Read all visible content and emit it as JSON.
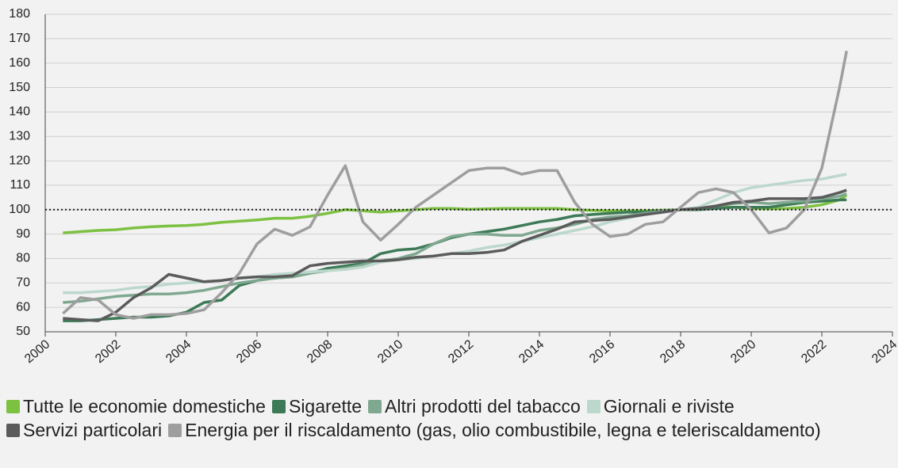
{
  "chart_data": {
    "type": "line",
    "x": [
      2000.5,
      2001,
      2001.5,
      2002,
      2002.5,
      2003,
      2003.5,
      2004,
      2004.5,
      2005,
      2005.5,
      2006,
      2006.5,
      2007,
      2007.5,
      2008,
      2008.5,
      2009,
      2009.5,
      2010,
      2010.5,
      2011,
      2011.5,
      2012,
      2012.5,
      2013,
      2013.5,
      2014,
      2014.5,
      2015,
      2015.5,
      2016,
      2016.5,
      2017,
      2017.5,
      2018,
      2018.5,
      2019,
      2019.5,
      2020,
      2020.5,
      2021,
      2021.5,
      2022,
      2022.5,
      2022.7
    ],
    "series": [
      {
        "name": "Tutte le economie domestiche",
        "color": "#7dc142",
        "values": [
          90.5,
          91,
          91.5,
          91.8,
          92.5,
          93,
          93.3,
          93.5,
          94,
          94.8,
          95.3,
          95.8,
          96.5,
          96.5,
          97.3,
          98.5,
          100,
          99.5,
          99,
          99.5,
          100,
          100.5,
          100.5,
          100.2,
          100.3,
          100.5,
          100.5,
          100.5,
          100.5,
          100,
          99.7,
          99.5,
          99.5,
          99.6,
          99.8,
          100,
          100.5,
          101,
          101,
          100.5,
          100.3,
          100.5,
          101,
          102,
          104,
          106
        ]
      },
      {
        "name": "Sigarette",
        "color": "#3d7a57",
        "values": [
          54.5,
          54.5,
          55,
          55.5,
          56,
          56,
          56.5,
          58,
          62,
          63,
          69,
          71,
          72,
          72.5,
          74,
          76,
          77,
          78,
          82,
          83.5,
          84,
          86,
          88.5,
          90,
          91,
          92,
          93.5,
          95,
          96,
          97.5,
          98,
          98.5,
          99,
          99,
          99.5,
          100,
          100,
          100.5,
          101,
          101,
          101,
          102,
          103,
          103.5,
          104,
          104
        ]
      },
      {
        "name": "Altri prodotti del tabacco",
        "color": "#7fa890",
        "values": [
          62,
          62.5,
          63.5,
          64.5,
          65,
          65.5,
          65.5,
          66,
          67,
          68.5,
          70,
          71,
          72,
          72.5,
          74,
          75,
          76,
          77.5,
          79,
          80,
          82,
          86,
          89,
          90,
          90,
          89.5,
          89.5,
          91.5,
          92.5,
          94,
          96,
          97,
          97.5,
          98.5,
          99.5,
          100,
          100.5,
          101.5,
          102.5,
          103,
          102.5,
          103,
          103.5,
          104.5,
          105.5,
          106.5
        ]
      },
      {
        "name": "Giornali e riviste",
        "color": "#bcd8cc",
        "values": [
          66,
          66,
          66.5,
          67,
          68,
          68.5,
          69.5,
          70,
          70.5,
          71,
          72,
          72.5,
          73.5,
          74,
          74.5,
          75,
          75.5,
          76.5,
          78.5,
          79.5,
          80,
          81,
          82,
          83,
          84.5,
          85.5,
          87,
          88.5,
          90,
          91.5,
          93,
          95,
          96.5,
          98,
          99,
          100,
          101,
          104,
          107,
          109,
          110,
          111,
          112,
          112.5,
          114,
          114.5
        ]
      },
      {
        "name": "Servizi particolari",
        "color": "#5b5b5b",
        "values": [
          55.5,
          55,
          54.5,
          58,
          64,
          68,
          73.5,
          72,
          70.5,
          71,
          72,
          72.5,
          72.5,
          73,
          77,
          78,
          78.5,
          79,
          79,
          79.5,
          80.5,
          81,
          82,
          82,
          82.5,
          83.5,
          87,
          89.5,
          92,
          95,
          95.5,
          96,
          97,
          98,
          99,
          100,
          100.5,
          101.5,
          103,
          103.5,
          104.5,
          104.5,
          104.5,
          105,
          107,
          108
        ]
      },
      {
        "name": "Energia per il riscaldamento (gas, olio combustibile, legna e teleriscaldamento)",
        "color": "#9e9e9e",
        "values": [
          57.5,
          64,
          63,
          57,
          55.5,
          57,
          57,
          57.5,
          59,
          66,
          74,
          86,
          92,
          89.5,
          93,
          106,
          118,
          95,
          87.5,
          94,
          101,
          106,
          111,
          116,
          117,
          117,
          114.5,
          116,
          116,
          103,
          94,
          89,
          90,
          94,
          95,
          101,
          107,
          108.5,
          107,
          100,
          90.5,
          92.5,
          100,
          117,
          150,
          165
        ]
      }
    ],
    "xlim": [
      2000,
      2024
    ],
    "xticks": [
      2000,
      2002,
      2004,
      2006,
      2008,
      2010,
      2012,
      2014,
      2016,
      2018,
      2020,
      2022,
      2024
    ],
    "ylim": [
      50,
      180
    ],
    "yticks": [
      50,
      60,
      70,
      80,
      90,
      100,
      110,
      120,
      130,
      140,
      150,
      160,
      170,
      180
    ],
    "reference_line": 100,
    "grid": true
  }
}
